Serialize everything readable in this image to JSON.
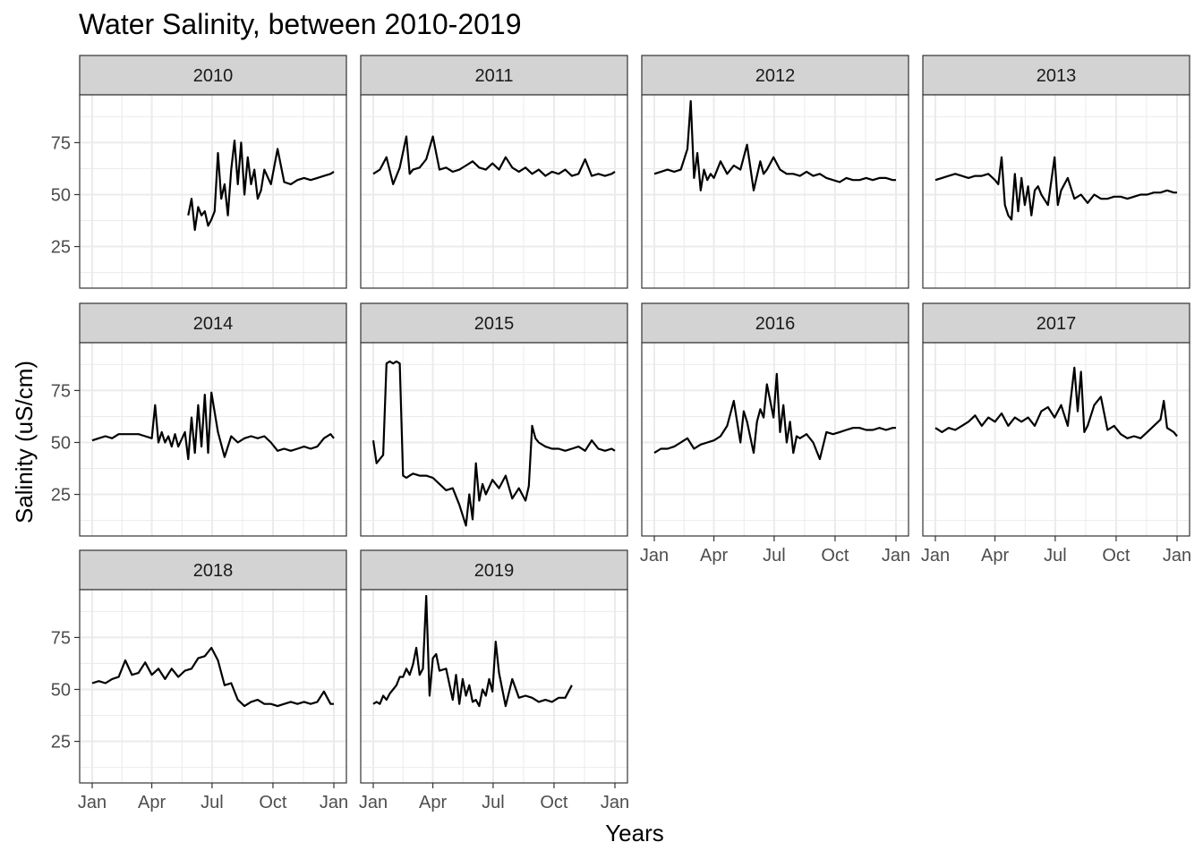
{
  "chart_data": {
    "type": "line",
    "layout": "facet-wrap",
    "facet_columns": 4,
    "title": "Water Salinity, between 2010-2019",
    "xlabel": "Years",
    "ylabel": "Salinity (uS/cm)",
    "x_ticks": [
      "Jan",
      "Apr",
      "Jul",
      "Oct",
      "Jan"
    ],
    "x_tick_days": [
      0,
      90,
      181,
      273,
      365
    ],
    "ylim": [
      5,
      98
    ],
    "y_ticks": [
      25,
      50,
      75
    ],
    "grid": true,
    "line_color": "#000000",
    "strip_fill": "#d3d3d3",
    "panel_border": "#333333",
    "grid_color": "#ebebeb",
    "panels": [
      {
        "label": "2010",
        "days": [
          145,
          150,
          155,
          160,
          165,
          170,
          175,
          180,
          185,
          190,
          195,
          200,
          205,
          210,
          215,
          220,
          225,
          230,
          235,
          240,
          245,
          250,
          255,
          260,
          270,
          280,
          290,
          300,
          310,
          320,
          330,
          340,
          350,
          360,
          365
        ],
        "values": [
          40,
          48,
          33,
          44,
          40,
          42,
          35,
          38,
          42,
          70,
          48,
          55,
          40,
          62,
          76,
          55,
          75,
          50,
          68,
          55,
          62,
          48,
          52,
          62,
          55,
          72,
          56,
          55,
          57,
          58,
          57,
          58,
          59,
          60,
          61
        ]
      },
      {
        "label": "2011",
        "days": [
          0,
          10,
          20,
          30,
          40,
          50,
          55,
          60,
          70,
          80,
          90,
          100,
          110,
          120,
          130,
          140,
          150,
          160,
          170,
          180,
          190,
          200,
          210,
          220,
          230,
          240,
          250,
          260,
          270,
          280,
          290,
          300,
          310,
          320,
          330,
          340,
          350,
          360,
          365
        ],
        "values": [
          60,
          62,
          68,
          55,
          63,
          78,
          60,
          62,
          63,
          67,
          78,
          62,
          63,
          61,
          62,
          64,
          66,
          63,
          62,
          65,
          62,
          68,
          63,
          61,
          63,
          60,
          62,
          59,
          61,
          60,
          62,
          59,
          60,
          67,
          59,
          60,
          59,
          60,
          61
        ]
      },
      {
        "label": "2012",
        "days": [
          0,
          10,
          20,
          30,
          40,
          50,
          55,
          60,
          65,
          70,
          75,
          80,
          85,
          90,
          100,
          110,
          120,
          130,
          140,
          150,
          160,
          165,
          170,
          180,
          190,
          200,
          210,
          220,
          230,
          240,
          250,
          260,
          270,
          280,
          290,
          300,
          310,
          320,
          330,
          340,
          350,
          360,
          365
        ],
        "values": [
          60,
          61,
          62,
          61,
          62,
          72,
          95,
          58,
          70,
          52,
          62,
          57,
          60,
          58,
          66,
          60,
          64,
          62,
          74,
          52,
          66,
          60,
          62,
          68,
          62,
          60,
          60,
          59,
          61,
          59,
          60,
          58,
          57,
          56,
          58,
          57,
          57,
          58,
          57,
          58,
          58,
          57,
          57
        ]
      },
      {
        "label": "2013",
        "days": [
          0,
          10,
          20,
          30,
          40,
          50,
          60,
          70,
          80,
          90,
          95,
          100,
          105,
          110,
          115,
          120,
          125,
          130,
          135,
          140,
          145,
          150,
          155,
          160,
          170,
          180,
          185,
          190,
          200,
          210,
          220,
          230,
          240,
          250,
          260,
          270,
          280,
          290,
          300,
          310,
          320,
          330,
          340,
          350,
          360,
          365
        ],
        "values": [
          57,
          58,
          59,
          60,
          59,
          58,
          59,
          59,
          60,
          57,
          55,
          68,
          45,
          40,
          38,
          60,
          42,
          58,
          45,
          54,
          40,
          52,
          54,
          50,
          45,
          68,
          45,
          52,
          58,
          48,
          50,
          46,
          50,
          48,
          48,
          49,
          49,
          48,
          49,
          50,
          50,
          51,
          51,
          52,
          51,
          51
        ]
      },
      {
        "label": "2014",
        "days": [
          0,
          10,
          20,
          30,
          40,
          50,
          60,
          70,
          80,
          90,
          95,
          100,
          105,
          110,
          115,
          120,
          125,
          130,
          140,
          145,
          150,
          155,
          160,
          165,
          170,
          175,
          180,
          190,
          200,
          210,
          220,
          230,
          240,
          250,
          260,
          270,
          280,
          290,
          300,
          310,
          320,
          330,
          340,
          350,
          360,
          365
        ],
        "values": [
          51,
          52,
          53,
          52,
          54,
          54,
          54,
          54,
          53,
          52,
          68,
          50,
          55,
          50,
          53,
          48,
          54,
          48,
          55,
          42,
          62,
          45,
          68,
          48,
          73,
          45,
          74,
          55,
          43,
          53,
          50,
          52,
          53,
          52,
          53,
          50,
          46,
          47,
          46,
          47,
          48,
          47,
          48,
          52,
          54,
          52
        ]
      },
      {
        "label": "2015",
        "days": [
          0,
          5,
          10,
          15,
          20,
          25,
          30,
          35,
          40,
          45,
          50,
          55,
          60,
          70,
          80,
          90,
          100,
          110,
          120,
          130,
          135,
          140,
          145,
          150,
          155,
          160,
          165,
          170,
          180,
          190,
          200,
          210,
          220,
          230,
          235,
          240,
          245,
          250,
          260,
          270,
          280,
          290,
          300,
          310,
          320,
          330,
          340,
          350,
          360,
          365
        ],
        "values": [
          51,
          40,
          42,
          44,
          88,
          89,
          88,
          89,
          88,
          34,
          33,
          34,
          35,
          34,
          34,
          33,
          30,
          27,
          28,
          20,
          15,
          10,
          25,
          13,
          40,
          22,
          30,
          25,
          32,
          28,
          34,
          23,
          28,
          22,
          29,
          58,
          52,
          50,
          48,
          47,
          47,
          46,
          47,
          48,
          46,
          51,
          47,
          46,
          47,
          46
        ]
      },
      {
        "label": "2016",
        "days": [
          0,
          10,
          20,
          30,
          40,
          50,
          60,
          70,
          80,
          90,
          100,
          110,
          120,
          130,
          135,
          140,
          150,
          155,
          160,
          165,
          170,
          175,
          180,
          185,
          190,
          195,
          200,
          205,
          210,
          215,
          220,
          230,
          240,
          250,
          260,
          270,
          280,
          290,
          300,
          310,
          320,
          330,
          340,
          350,
          360,
          365
        ],
        "values": [
          45,
          47,
          47,
          48,
          50,
          52,
          47,
          49,
          50,
          51,
          53,
          58,
          70,
          50,
          65,
          60,
          45,
          60,
          66,
          62,
          78,
          70,
          62,
          83,
          55,
          68,
          50,
          60,
          45,
          53,
          52,
          54,
          50,
          42,
          55,
          54,
          55,
          56,
          57,
          57,
          56,
          56,
          57,
          56,
          57,
          57
        ]
      },
      {
        "label": "2017",
        "days": [
          0,
          10,
          20,
          30,
          40,
          50,
          60,
          70,
          80,
          90,
          100,
          110,
          120,
          130,
          140,
          150,
          160,
          170,
          180,
          190,
          200,
          210,
          215,
          220,
          225,
          230,
          240,
          250,
          260,
          270,
          280,
          290,
          300,
          310,
          320,
          330,
          340,
          345,
          350,
          360,
          365
        ],
        "values": [
          57,
          55,
          57,
          56,
          58,
          60,
          63,
          58,
          62,
          60,
          64,
          58,
          62,
          60,
          62,
          58,
          65,
          67,
          62,
          68,
          58,
          86,
          65,
          84,
          55,
          58,
          68,
          72,
          56,
          58,
          54,
          52,
          53,
          52,
          55,
          58,
          61,
          70,
          57,
          55,
          53
        ]
      },
      {
        "label": "2018",
        "days": [
          0,
          10,
          20,
          30,
          40,
          50,
          60,
          70,
          80,
          90,
          100,
          110,
          120,
          130,
          140,
          150,
          160,
          170,
          180,
          190,
          200,
          210,
          220,
          230,
          240,
          250,
          260,
          270,
          280,
          290,
          300,
          310,
          320,
          330,
          340,
          350,
          360,
          365
        ],
        "values": [
          53,
          54,
          53,
          55,
          56,
          64,
          57,
          58,
          63,
          57,
          60,
          55,
          60,
          56,
          59,
          60,
          65,
          66,
          70,
          64,
          52,
          53,
          45,
          42,
          44,
          45,
          43,
          43,
          42,
          43,
          44,
          43,
          44,
          43,
          44,
          49,
          43,
          43
        ]
      },
      {
        "label": "2019",
        "days": [
          0,
          5,
          10,
          15,
          20,
          25,
          30,
          35,
          40,
          45,
          50,
          55,
          60,
          65,
          70,
          75,
          80,
          85,
          90,
          95,
          100,
          110,
          120,
          125,
          130,
          135,
          140,
          145,
          150,
          155,
          160,
          165,
          170,
          175,
          180,
          185,
          190,
          200,
          210,
          220,
          230,
          240,
          250,
          260,
          270,
          280,
          290,
          300
        ],
        "values": [
          43,
          44,
          43,
          47,
          45,
          48,
          50,
          52,
          56,
          56,
          60,
          57,
          62,
          70,
          57,
          60,
          95,
          47,
          65,
          67,
          59,
          60,
          45,
          57,
          43,
          55,
          47,
          52,
          44,
          45,
          42,
          50,
          47,
          55,
          49,
          73,
          58,
          42,
          55,
          46,
          47,
          46,
          44,
          45,
          44,
          46,
          46,
          52
        ]
      }
    ]
  }
}
